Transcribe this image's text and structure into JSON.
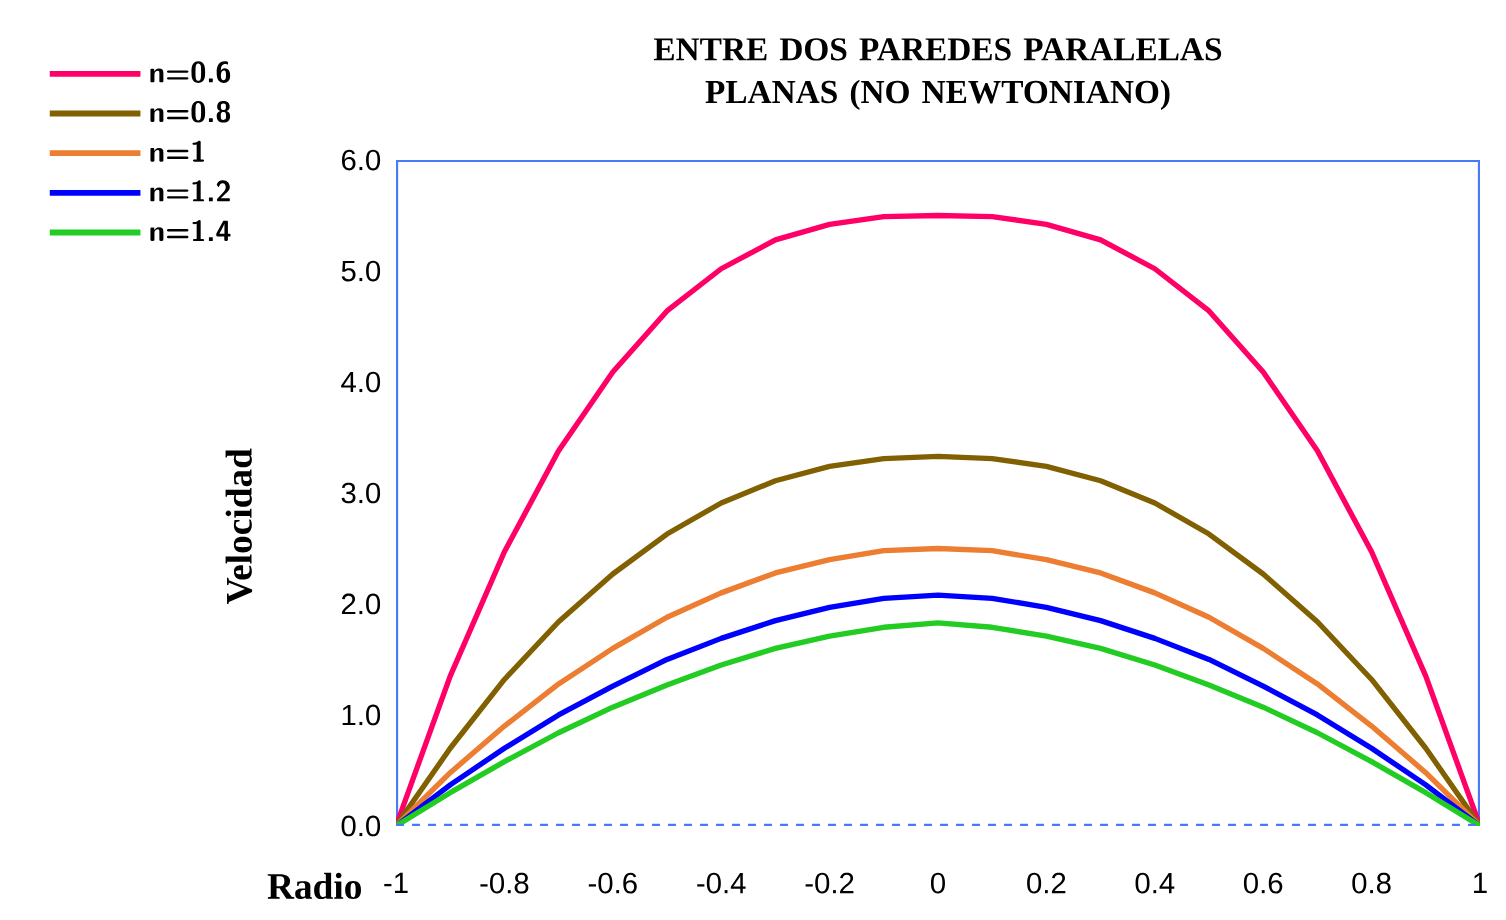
{
  "chart_data": {
    "type": "line",
    "title": "ENTRE DOS PAREDES PARALELAS PLANAS (NO NEWTONIANO)",
    "xlabel": "Radio",
    "ylabel": "Velocidad",
    "x": [
      -1,
      -0.9,
      -0.8,
      -0.7,
      -0.6,
      -0.5,
      -0.4,
      -0.3,
      -0.2,
      -0.1,
      0,
      0.1,
      0.2,
      0.3,
      0.4,
      0.5,
      0.6,
      0.7,
      0.8,
      0.9,
      1
    ],
    "series": [
      {
        "name": "n=0.6",
        "color": "#ff0066",
        "values": [
          0,
          1.35,
          2.47,
          3.38,
          4.09,
          4.64,
          5.02,
          5.28,
          5.42,
          5.49,
          5.5,
          5.49,
          5.42,
          5.28,
          5.02,
          4.64,
          4.09,
          3.38,
          2.47,
          1.35,
          0
        ]
      },
      {
        "name": "n=0.8",
        "color": "#806000",
        "values": [
          0,
          0.7,
          1.32,
          1.84,
          2.27,
          2.63,
          2.91,
          3.11,
          3.24,
          3.31,
          3.33,
          3.31,
          3.24,
          3.11,
          2.91,
          2.63,
          2.27,
          1.84,
          1.32,
          0.7,
          0
        ]
      },
      {
        "name": "n=1",
        "color": "#ed7d31",
        "values": [
          0,
          0.48,
          0.9,
          1.28,
          1.6,
          1.88,
          2.1,
          2.28,
          2.4,
          2.48,
          2.5,
          2.48,
          2.4,
          2.28,
          2.1,
          1.88,
          1.6,
          1.28,
          0.9,
          0.48,
          0
        ]
      },
      {
        "name": "n=1.2",
        "color": "#0000ff",
        "values": [
          0,
          0.37,
          0.7,
          1.0,
          1.26,
          1.5,
          1.69,
          1.85,
          1.97,
          2.05,
          2.08,
          2.05,
          1.97,
          1.85,
          1.69,
          1.5,
          1.26,
          1.0,
          0.7,
          0.37,
          0
        ]
      },
      {
        "name": "n=1.4",
        "color": "#22cc22",
        "values": [
          0,
          0.3,
          0.58,
          0.84,
          1.07,
          1.27,
          1.45,
          1.6,
          1.71,
          1.79,
          1.83,
          1.79,
          1.71,
          1.6,
          1.45,
          1.27,
          1.07,
          0.84,
          0.58,
          0.3,
          0
        ]
      }
    ],
    "xlim": [
      -1,
      1
    ],
    "ylim": [
      0,
      6
    ],
    "xticks": [
      -1,
      -0.8,
      -0.6,
      -0.4,
      -0.2,
      0,
      0.2,
      0.4,
      0.6,
      0.8,
      1
    ],
    "yticks": [
      {
        "value": 0,
        "label": "0.0"
      },
      {
        "value": 1,
        "label": "1.0"
      },
      {
        "value": 2,
        "label": "2.0"
      },
      {
        "value": 3,
        "label": "3.0"
      },
      {
        "value": 4,
        "label": "4.0"
      },
      {
        "value": 5,
        "label": "5.0"
      },
      {
        "value": 6,
        "label": "6.0"
      }
    ],
    "ref_lines": [
      {
        "axis": "y",
        "value": 0,
        "color": "#4a7bf7",
        "line_style": "dashed"
      }
    ],
    "legend": "top left"
  }
}
